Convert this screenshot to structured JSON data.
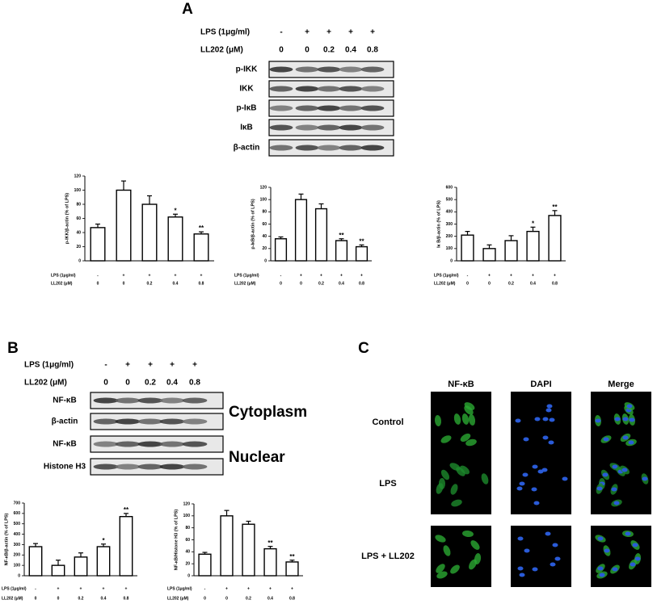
{
  "panel_labels": {
    "a": "A",
    "b": "B",
    "c": "C"
  },
  "blots_a": {
    "lps_label": "LPS (1μg/ml)",
    "ll202_label": "LL202 (μM)",
    "lps": [
      "-",
      "+",
      "+",
      "+",
      "+"
    ],
    "ll202": [
      "0",
      "0",
      "0.2",
      "0.4",
      "0.8"
    ],
    "rows": [
      "p-IKK",
      "IKK",
      "p-IκB",
      "IκB",
      "β-actin"
    ]
  },
  "blots_b": {
    "lps_label": "LPS (1μg/ml)",
    "ll202_label": "LL202 (μM)",
    "lps": [
      "-",
      "+",
      "+",
      "+",
      "+"
    ],
    "ll202": [
      "0",
      "0",
      "0.2",
      "0.4",
      "0.8"
    ],
    "rows": [
      "NF-κB",
      "β-actin",
      "NF-κB",
      "Histone H3"
    ],
    "compartments": [
      "Cytoplasm",
      "Nuclear"
    ]
  },
  "panel_c": {
    "columns": [
      "NF-κB",
      "DAPI",
      "Merge"
    ],
    "rows": [
      "Control",
      "LPS",
      "LPS + LL202"
    ]
  },
  "chart_data": [
    {
      "type": "bar",
      "y_label": "p-IKK/β-actin (% of LPS)",
      "lps_label": "LPS (1μg/ml)",
      "categories_label": "LL202 (μM)",
      "lps": [
        "-",
        "+",
        "+",
        "+",
        "+"
      ],
      "categories": [
        "0",
        "0",
        "0.2",
        "0.4",
        "0.8"
      ],
      "values": [
        47,
        100,
        80,
        62,
        38
      ],
      "errors": [
        5,
        13,
        12,
        4,
        3
      ],
      "annotations": [
        null,
        null,
        null,
        "*",
        "**"
      ],
      "color": "#ffffff",
      "ylim": [
        0,
        120
      ],
      "yticks": [
        0,
        20,
        40,
        60,
        80,
        100,
        120
      ]
    },
    {
      "type": "bar",
      "y_label": "p-IκB/β-actin (% of LPS)",
      "lps_label": "LPS (1μg/ml)",
      "categories_label": "LL202 (μM)",
      "lps": [
        "-",
        "+",
        "+",
        "+",
        "+"
      ],
      "categories": [
        "0",
        "0",
        "0.2",
        "0.4",
        "0.8"
      ],
      "values": [
        36,
        100,
        85,
        33,
        23
      ],
      "errors": [
        3,
        9,
        8,
        3,
        3
      ],
      "annotations": [
        null,
        null,
        null,
        "**",
        "**"
      ],
      "color": "#ffffff",
      "ylim": [
        0,
        120
      ],
      "yticks": [
        0,
        20,
        40,
        60,
        80,
        100,
        120
      ]
    },
    {
      "type": "bar",
      "y_label": "Iκ B/β-actin (% of LPS)",
      "lps_label": "LPS (1μg/ml)",
      "categories_label": "LL202 (μM)",
      "lps": [
        "-",
        "+",
        "+",
        "+",
        "+"
      ],
      "categories": [
        "0",
        "0",
        "0.2",
        "0.4",
        "0.8"
      ],
      "values": [
        210,
        100,
        165,
        240,
        370
      ],
      "errors": [
        30,
        30,
        40,
        35,
        40
      ],
      "annotations": [
        null,
        null,
        null,
        "*",
        "**"
      ],
      "color": "#ffffff",
      "ylim": [
        0,
        600
      ],
      "yticks": [
        0,
        100,
        200,
        300,
        400,
        500,
        600
      ]
    },
    {
      "type": "bar",
      "y_label": "NF-κB/β-actin (% of LPS)",
      "lps_label": "LPS (1μg/ml)",
      "categories_label": "LL202 (μM)",
      "lps": [
        "-",
        "+",
        "+",
        "+",
        "+"
      ],
      "categories": [
        "0",
        "0",
        "0.2",
        "0.4",
        "0.8"
      ],
      "values": [
        280,
        100,
        180,
        280,
        570
      ],
      "errors": [
        30,
        50,
        40,
        25,
        30
      ],
      "annotations": [
        null,
        null,
        null,
        "*",
        "**"
      ],
      "color": "#ffffff",
      "ylim": [
        0,
        700
      ],
      "yticks": [
        0,
        100,
        200,
        300,
        400,
        500,
        600,
        700
      ]
    },
    {
      "type": "bar",
      "y_label": "NF-κB/Histone H3 (% of LPS)",
      "lps_label": "LPS (1μg/ml)",
      "categories_label": "LL202 (μM)",
      "lps": [
        "-",
        "+",
        "+",
        "+",
        "+"
      ],
      "categories": [
        "0",
        "0",
        "0.2",
        "0.4",
        "0.8"
      ],
      "values": [
        36,
        100,
        86,
        45,
        23
      ],
      "errors": [
        3,
        9,
        5,
        4,
        3
      ],
      "annotations": [
        null,
        null,
        null,
        "**",
        "**"
      ],
      "color": "#ffffff",
      "ylim": [
        0,
        120
      ],
      "yticks": [
        0,
        20,
        40,
        60,
        80,
        100,
        120
      ]
    }
  ]
}
